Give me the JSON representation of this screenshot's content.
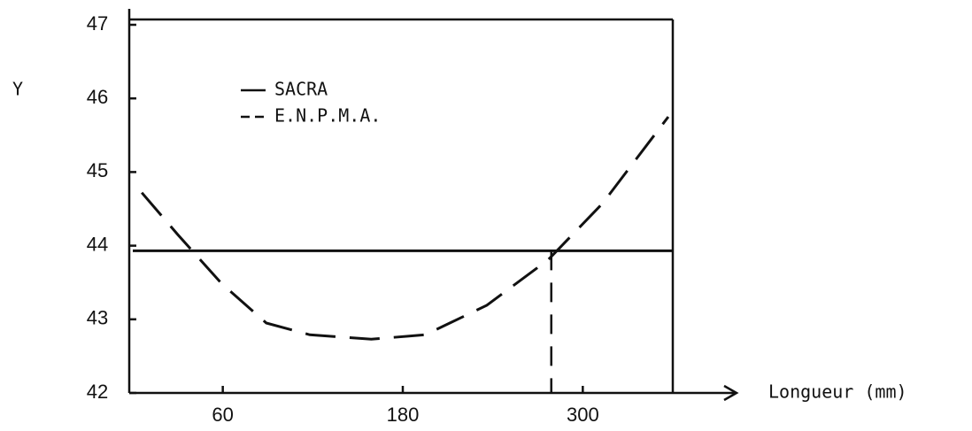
{
  "chart_data": {
    "type": "line",
    "ylabel": "Y",
    "xlabel": "Longueur (mm)",
    "xlim": [
      0,
      360
    ],
    "ylim": [
      42,
      47
    ],
    "xticks": [
      60,
      180,
      300
    ],
    "yticks": [
      42,
      43,
      44,
      45,
      46,
      47
    ],
    "series": [
      {
        "name": "SACRA",
        "color": "#111111",
        "style": "solid",
        "x": [
          0,
          360
        ],
        "values": [
          43.93,
          43.93
        ]
      },
      {
        "name": "E.N.P.M.A.",
        "color": "#111111",
        "style": "dashed",
        "x": [
          6,
          30,
          59,
          89,
          118,
          159,
          195,
          236,
          277,
          313,
          357
        ],
        "values": [
          44.72,
          44.15,
          43.49,
          42.95,
          42.79,
          42.73,
          42.79,
          43.19,
          43.81,
          44.57,
          45.75
        ]
      }
    ],
    "marker_x": 279
  }
}
